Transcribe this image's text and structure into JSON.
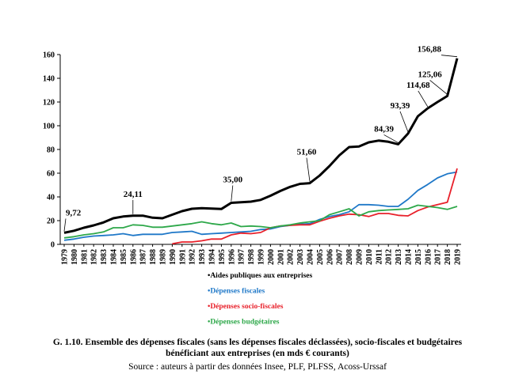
{
  "chart_data": {
    "type": "line",
    "title": "",
    "xlabel": "",
    "ylabel": "",
    "ylim": [
      0,
      160
    ],
    "yticks": [
      0,
      20,
      40,
      60,
      80,
      100,
      120,
      140,
      160
    ],
    "grid": false,
    "legend_position": "bottom",
    "x": [
      "1979",
      "1980",
      "1981",
      "1982",
      "1983",
      "1984",
      "1985",
      "1986",
      "1987",
      "1988",
      "1989",
      "1990",
      "1991",
      "1992",
      "1993",
      "1994",
      "1995",
      "1996",
      "1997",
      "1998",
      "1999",
      "2000",
      "2001",
      "2002",
      "2003",
      "2004",
      "2005",
      "2006",
      "2007",
      "2008",
      "2009",
      "2010",
      "2011",
      "2012",
      "2013",
      "2014",
      "2015",
      "2016",
      "2017",
      "2018",
      "2019"
    ],
    "series": [
      {
        "name": "•Aides publiques aux entreprises",
        "color": "#000000",
        "values": [
          9.72,
          11.5,
          14,
          16,
          18.5,
          22,
          23.5,
          24.11,
          24.2,
          22.5,
          22,
          25,
          28,
          30,
          30.5,
          30.2,
          29.8,
          35,
          35.5,
          36,
          37.5,
          41,
          45,
          48.5,
          51,
          51.6,
          58,
          66,
          75,
          82,
          82.5,
          86,
          87.5,
          86.5,
          84.39,
          93.39,
          108,
          114.68,
          120,
          125.06,
          156.88
        ]
      },
      {
        "name": "•Dépenses fiscales",
        "color": "#1f78c8",
        "values": [
          3.5,
          4.5,
          6,
          7,
          7.5,
          8,
          9,
          7.5,
          8.5,
          8.5,
          8.5,
          10,
          10.5,
          11,
          8.5,
          9,
          9.5,
          10,
          10.5,
          11,
          12.5,
          13,
          15,
          16,
          17,
          17.5,
          21,
          23.5,
          25,
          27.5,
          33.5,
          33.5,
          33,
          32,
          32,
          38,
          45.5,
          50.5,
          56,
          59.5,
          61
        ]
      },
      {
        "name": "•Dépenses socio-fiscales",
        "color": "#e8202a",
        "values": [
          null,
          null,
          null,
          null,
          null,
          null,
          null,
          null,
          null,
          null,
          null,
          0.5,
          2,
          2,
          3,
          4.5,
          4.5,
          8,
          9.5,
          9,
          10,
          14,
          15.5,
          16,
          16.5,
          16.5,
          19.5,
          22,
          24,
          25.5,
          25,
          23.5,
          26,
          26,
          24.5,
          24,
          28.5,
          31.5,
          33.5,
          35.5,
          64
        ]
      },
      {
        "name": "•Dépenses budgétaires",
        "color": "#2ea84a",
        "values": [
          5.5,
          6.5,
          8,
          9,
          10.5,
          14,
          14,
          16.5,
          16,
          14.5,
          14.5,
          15.5,
          16.5,
          17.5,
          19,
          17.5,
          16.5,
          18,
          15,
          15.5,
          15,
          14,
          15.5,
          16.5,
          18,
          19,
          20,
          25,
          27.5,
          30,
          24,
          27.5,
          28.5,
          29,
          29.5,
          30,
          33,
          32,
          31,
          29.5,
          32
        ]
      }
    ],
    "annotations": [
      {
        "text": "9,72",
        "x": "1979",
        "y": 9.72
      },
      {
        "text": "24,11",
        "x": "1986",
        "y": 24.11
      },
      {
        "text": "35,00",
        "x": "1996",
        "y": 35.0
      },
      {
        "text": "51,60",
        "x": "2004",
        "y": 51.6
      },
      {
        "text": "84,39",
        "x": "2013",
        "y": 84.39
      },
      {
        "text": "93,39",
        "x": "2014",
        "y": 93.39
      },
      {
        "text": "114,68",
        "x": "2016",
        "y": 114.68
      },
      {
        "text": "125,06",
        "x": "2018",
        "y": 125.06
      },
      {
        "text": "156,88",
        "x": "2019",
        "y": 156.88
      }
    ]
  },
  "caption": {
    "line1": "G. 1.10. Ensemble des dépenses fiscales (sans les dépenses fiscales déclassées), socio-fiscales et budgétaires",
    "line2": "bénéficiant aux entreprises (en mds € courants)"
  },
  "source": "Source : auteurs à partir des données Insee, PLF, PLFSS, Acoss-Urssaf"
}
